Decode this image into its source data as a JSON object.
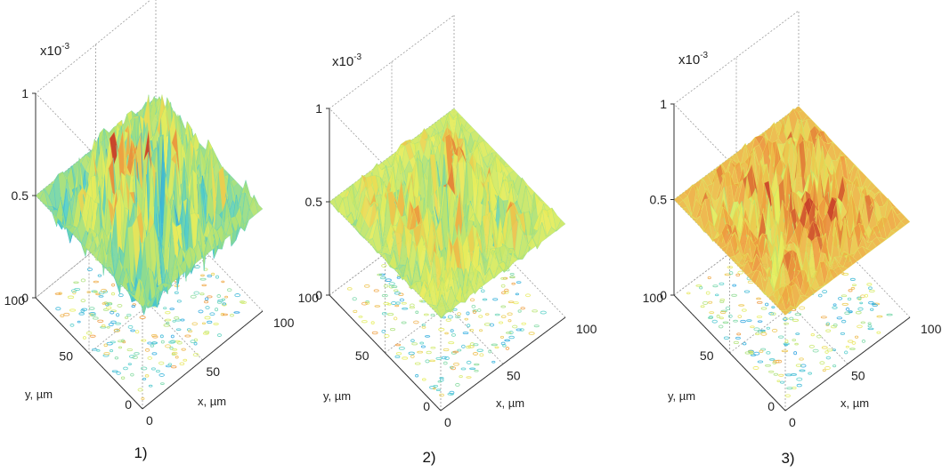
{
  "chart_data": [
    {
      "type": "surface3d",
      "panel_label": "1)",
      "z_multiplier": "x10",
      "z_exponent": "-3",
      "z_ticks": [
        "0",
        "0.5",
        "1"
      ],
      "y_ticks": [
        "100",
        "50",
        "0"
      ],
      "x_ticks": [
        "0",
        "50",
        "100"
      ],
      "xlabel": "x, µm",
      "ylabel": "y, µm",
      "zlim": [
        0,
        1
      ],
      "xlim": [
        0,
        100
      ],
      "ylim": [
        0,
        100
      ],
      "baseline_z": 0.5,
      "fluctuation_amplitude": 0.45,
      "dominant_colormap_level": 0.5,
      "grid": true
    },
    {
      "type": "surface3d",
      "panel_label": "2)",
      "z_multiplier": "x10",
      "z_exponent": "-3",
      "z_ticks": [
        "0",
        "0.5",
        "1"
      ],
      "y_ticks": [
        "100",
        "50",
        "0"
      ],
      "x_ticks": [
        "0",
        "50",
        "100"
      ],
      "xlabel": "x, µm",
      "ylabel": "y, µm",
      "zlim": [
        0,
        1
      ],
      "xlim": [
        0,
        100
      ],
      "ylim": [
        0,
        100
      ],
      "baseline_z": 0.5,
      "fluctuation_amplitude": 0.3,
      "dominant_colormap_level": 0.62,
      "grid": true
    },
    {
      "type": "surface3d",
      "panel_label": "3)",
      "z_multiplier": "x10",
      "z_exponent": "-3",
      "z_ticks": [
        "0",
        "0.5",
        "1"
      ],
      "y_ticks": [
        "100",
        "50",
        "0"
      ],
      "x_ticks": [
        "0",
        "50",
        "100"
      ],
      "xlabel": "x, µm",
      "ylabel": "y, µm",
      "zlim": [
        0,
        1
      ],
      "xlim": [
        0,
        100
      ],
      "ylim": [
        0,
        100
      ],
      "baseline_z": 0.5,
      "fluctuation_amplitude": 0.25,
      "dominant_colormap_level": 0.78,
      "grid": true
    }
  ],
  "colors": {
    "axis": "#333333",
    "grid": "#9a9a9a",
    "colormap": [
      "#1f4fd1",
      "#2aa8e0",
      "#55d0c8",
      "#a6e07a",
      "#e8ee5c",
      "#f0a040",
      "#c8402a"
    ]
  }
}
